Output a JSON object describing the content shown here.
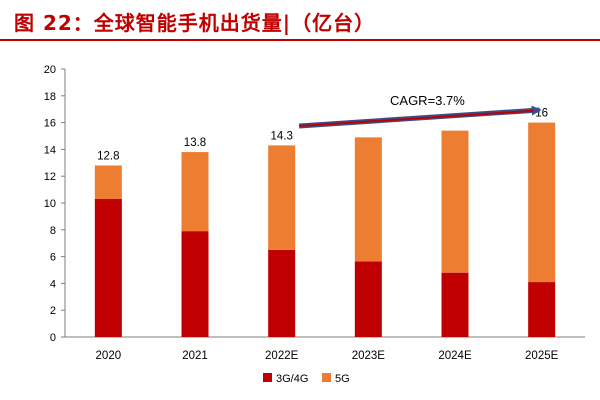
{
  "title": "图 22：全球智能手机出货量|（亿台）",
  "colors": {
    "title": "#c00000",
    "s3g4g": "#c00000",
    "s5g": "#ed7d31",
    "arrow": "#c00000",
    "arrow_outline": "#3a4f8a",
    "axis": "#7f7f7f",
    "grid": "#d9d9d9",
    "text": "#000000"
  },
  "chart_data": {
    "type": "bar",
    "stacked": true,
    "categories": [
      "2020",
      "2021",
      "2022E",
      "2023E",
      "2024E",
      "2025E"
    ],
    "series": [
      {
        "name": "3G/4G",
        "values": [
          10.3,
          7.9,
          6.5,
          5.65,
          4.8,
          4.1
        ]
      },
      {
        "name": "5G",
        "values": [
          2.5,
          5.9,
          7.8,
          9.25,
          10.6,
          11.9
        ]
      }
    ],
    "totals": [
      "12.8",
      "13.8",
      "14.3",
      null,
      null,
      "16"
    ],
    "ylim": [
      0,
      20
    ],
    "yticks": [
      "0",
      "2",
      "4",
      "6",
      "8",
      "10",
      "12",
      "14",
      "16",
      "18",
      "20"
    ],
    "annotation": {
      "text": "CAGR=3.7%",
      "from_category": "2022E",
      "to_category": "2025E"
    },
    "legend_position": "bottom",
    "grid": false
  }
}
